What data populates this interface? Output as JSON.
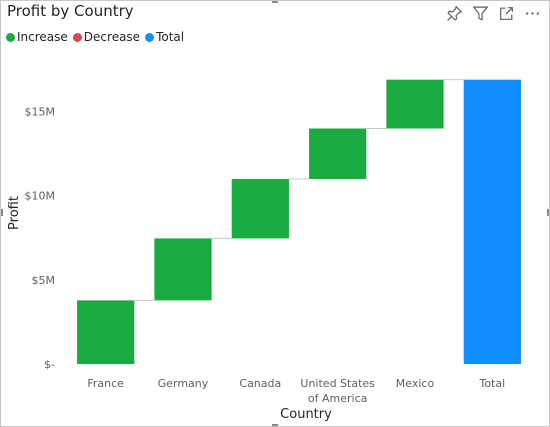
{
  "chart_data": {
    "type": "waterfall",
    "title": "Profit by Country",
    "xlabel": "Country",
    "ylabel": "Profit",
    "categories": [
      "France",
      "Germany",
      "Canada",
      "United States of America",
      "Mexico",
      "Total"
    ],
    "category_lines": [
      [
        "France"
      ],
      [
        "Germany"
      ],
      [
        "Canada"
      ],
      [
        "United States",
        "of America"
      ],
      [
        "Mexico"
      ],
      [
        "Total"
      ]
    ],
    "values": [
      3.78,
      3.68,
      3.53,
      3.0,
      2.9,
      16.89
    ],
    "kinds": [
      "increase",
      "increase",
      "increase",
      "increase",
      "increase",
      "total"
    ],
    "ylim": [
      0,
      18
    ],
    "yticks": [
      0,
      5,
      10,
      15
    ],
    "ytick_labels": [
      "$-",
      "$5M",
      "$10M",
      "$15M"
    ],
    "unit": "$M",
    "legend": [
      {
        "name": "Increase",
        "color": "#1aab40"
      },
      {
        "name": "Decrease",
        "color": "#d64554"
      },
      {
        "name": "Total",
        "color": "#118dff"
      }
    ],
    "legend_position": "top-left",
    "grid": false
  },
  "colors": {
    "increase": "#1aab40",
    "decrease": "#d64554",
    "total": "#118dff",
    "connector": "#c8c8c8",
    "axis_text": "#605e5c",
    "title_text": "#252423"
  },
  "toolbar_icons": [
    "pin-icon",
    "filter-icon",
    "focus-mode-icon",
    "more-options-icon"
  ]
}
